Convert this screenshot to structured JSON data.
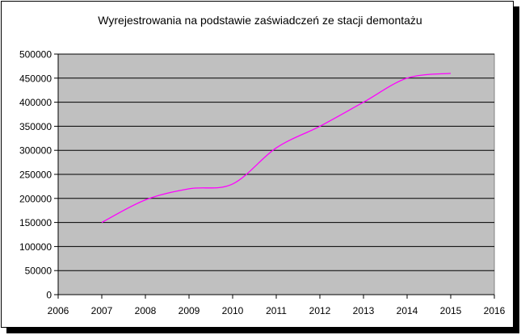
{
  "chart_data": {
    "type": "line",
    "title": "Wyrejestrowania na podstawie zaświadczeń ze stacji demontażu",
    "xlabel": "",
    "ylabel": "",
    "xlim": [
      2006,
      2016
    ],
    "ylim": [
      0,
      500000
    ],
    "x_ticks": [
      "2006",
      "2007",
      "2008",
      "2009",
      "2010",
      "2011",
      "2012",
      "2013",
      "2014",
      "2015",
      "2016"
    ],
    "y_ticks": [
      "0",
      "50000",
      "100000",
      "150000",
      "200000",
      "250000",
      "300000",
      "350000",
      "400000",
      "450000",
      "500000"
    ],
    "grid": "horizontal",
    "legend": "none",
    "plot_background": "#c0c0c0",
    "series": [
      {
        "color": "#ff00ff",
        "x": [
          2007,
          2008,
          2009,
          2010,
          2011,
          2012,
          2013,
          2014,
          2015
        ],
        "values": [
          150000,
          197000,
          220000,
          230000,
          305000,
          350000,
          400000,
          450000,
          460000
        ]
      }
    ]
  }
}
